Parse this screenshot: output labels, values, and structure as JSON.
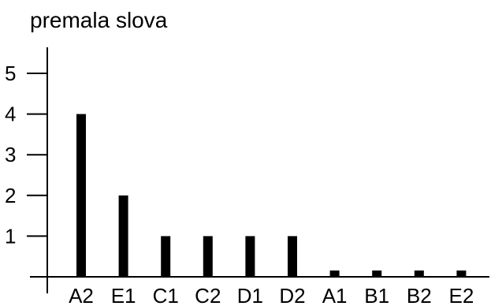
{
  "chart_data": {
    "type": "bar",
    "title": "premala slova",
    "xlabel": "",
    "ylabel": "",
    "categories": [
      "A2",
      "E1",
      "C1",
      "C2",
      "D1",
      "D2",
      "A1",
      "B1",
      "B2",
      "E2"
    ],
    "values": [
      4,
      2,
      1,
      1,
      1,
      1,
      0,
      0,
      0,
      0
    ],
    "yticks": [
      1,
      2,
      3,
      4,
      5
    ],
    "ylim": [
      0,
      5.5
    ],
    "grid": false,
    "legend": "none",
    "bar_color": "#000000",
    "axis_color": "#000000"
  }
}
